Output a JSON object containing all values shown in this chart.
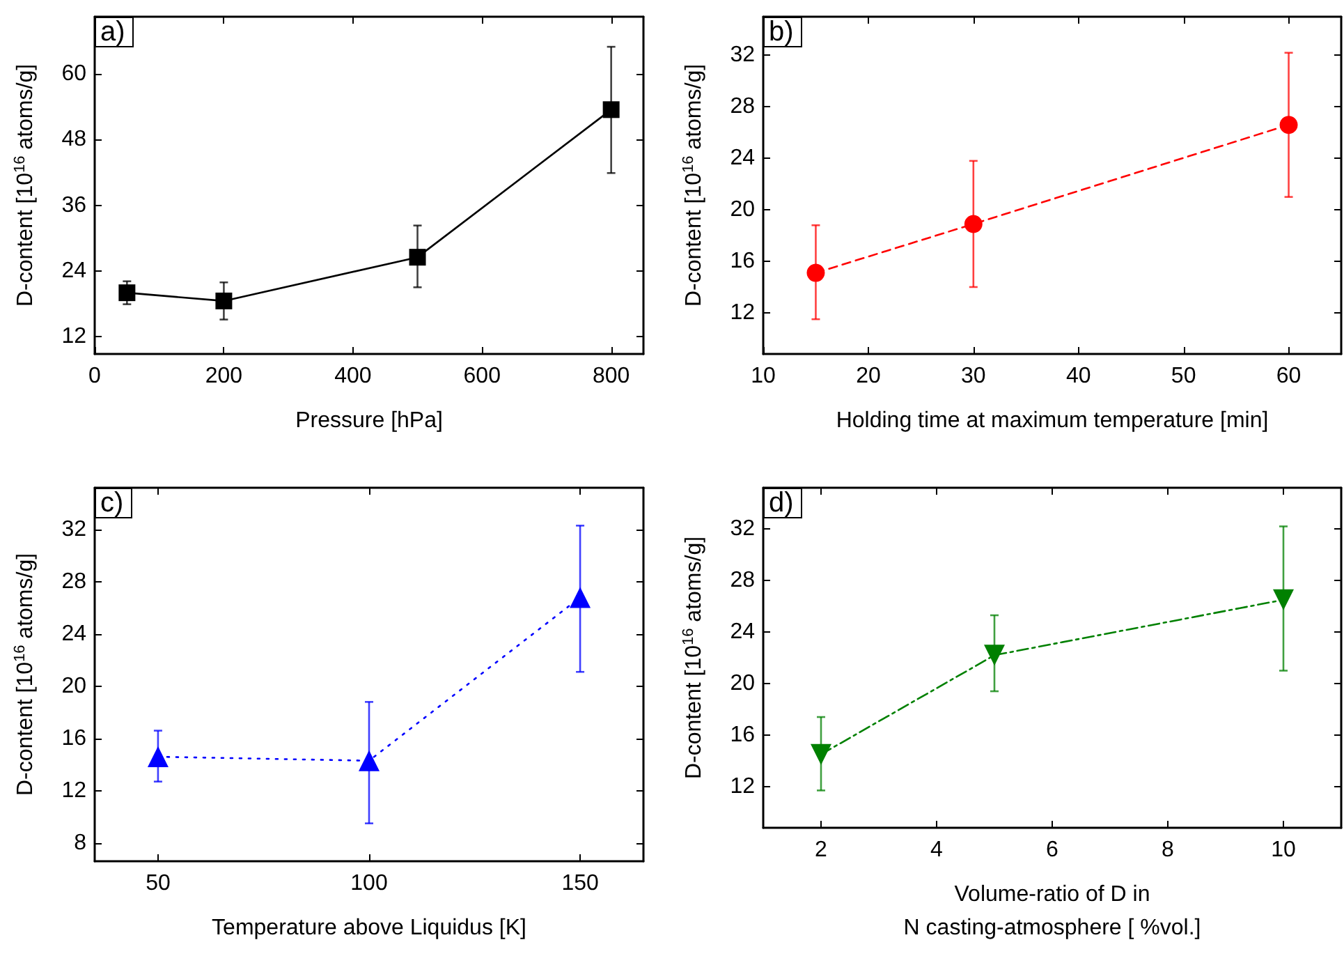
{
  "chart_data": [
    {
      "type": "line",
      "title": "a)",
      "xlabel": "Pressure [hPa]",
      "ylabel": "D-content [10$^{16}$ atoms/g]",
      "x": [
        50,
        200,
        500,
        800
      ],
      "xlim": [
        0,
        850
      ],
      "xticks": [
        0,
        200,
        400,
        600,
        800
      ],
      "ylim": [
        8.8,
        70.5
      ],
      "yticks": [
        12,
        24,
        36,
        48,
        60
      ],
      "grid": false,
      "marker": "square",
      "line_style": "solid",
      "series": [
        {
          "color": "#000000",
          "values": [
            20.0,
            18.5,
            26.5,
            53.5
          ],
          "errors": [
            [
              17.9,
              22.1
            ],
            [
              15.1,
              21.9
            ],
            [
              21.0,
              32.3
            ],
            [
              41.9,
              65.0
            ]
          ]
        }
      ]
    },
    {
      "type": "line",
      "title": "b)",
      "xlabel": "Holding time at maximum temperature [min]",
      "ylabel": "D-content [10$^{16}$ atoms/g]",
      "x": [
        15,
        30,
        60
      ],
      "xlim": [
        10,
        65
      ],
      "xticks": [
        10,
        20,
        30,
        40,
        50,
        60
      ],
      "ylim": [
        8.8,
        35
      ],
      "yticks": [
        12,
        16,
        20,
        24,
        28,
        32
      ],
      "grid": false,
      "marker": "circle",
      "line_style": "dashed",
      "series": [
        {
          "color": "#ff0000",
          "values": [
            15.1,
            18.9,
            26.6
          ],
          "errors": [
            [
              11.5,
              18.8
            ],
            [
              14.0,
              23.8
            ],
            [
              21.0,
              32.2
            ]
          ]
        }
      ]
    },
    {
      "type": "line",
      "title": "c)",
      "xlabel": "Temperature above Liquidus [K]",
      "ylabel": "D-content [10$^{16}$ atoms/g]",
      "x": [
        50,
        100,
        150
      ],
      "xlim": [
        35,
        165
      ],
      "xticks": [
        50,
        100,
        150
      ],
      "ylim": [
        6.6,
        35.2
      ],
      "yticks": [
        8,
        12,
        16,
        20,
        24,
        28,
        32
      ],
      "grid": false,
      "marker": "triangle",
      "line_style": "dotted",
      "series": [
        {
          "color": "#0000ff",
          "values": [
            14.6,
            14.3,
            26.8
          ],
          "errors": [
            [
              12.7,
              16.6
            ],
            [
              9.5,
              18.8
            ],
            [
              21.1,
              32.3
            ]
          ]
        }
      ]
    },
    {
      "type": "line",
      "title": "d)",
      "xlabel": "Volume-ratio of D in\nN casting-atmosphere [ %vol.]",
      "ylabel": "D-content [10$^{16}$ atoms/g]",
      "x": [
        2,
        5,
        10
      ],
      "xlim": [
        1,
        11
      ],
      "xticks": [
        2,
        4,
        6,
        8,
        10
      ],
      "ylim": [
        8.8,
        35.2
      ],
      "yticks": [
        12,
        16,
        20,
        24,
        28,
        32
      ],
      "grid": false,
      "marker": "triangle-down",
      "line_style": "dashdot",
      "series": [
        {
          "color": "#008000",
          "values": [
            14.5,
            22.2,
            26.5
          ],
          "errors": [
            [
              11.7,
              17.4
            ],
            [
              19.4,
              25.3
            ],
            [
              21.0,
              32.2
            ]
          ]
        }
      ]
    }
  ]
}
